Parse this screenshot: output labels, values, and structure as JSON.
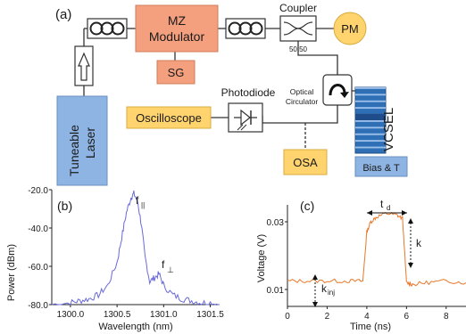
{
  "panel_a": {
    "label": "(a)",
    "laser_label_1": "Tuneable",
    "laser_label_2": "Laser",
    "mz_label_1": "MZ",
    "mz_label_2": "Modulator",
    "sg_label": "SG",
    "coupler_label": "Coupler",
    "coupler_ratio": "50:50",
    "pm_label": "PM",
    "photodiode_label": "Photodiode",
    "oscilloscope_label": "Oscilloscope",
    "circulator_label_1": "Optical",
    "circulator_label_2": "Circulator",
    "osa_label": "OSA",
    "vcsel_label": "VCSEL",
    "bias_label": "Bias & T",
    "colors": {
      "laser": "#8eb4e3",
      "modulator": "#f4a07f",
      "sg": "#f4a07f",
      "pm": "#ffd36e",
      "oscilloscope": "#ffd36e",
      "osa": "#ffd36e",
      "vcsel": "#2f6fb5",
      "bias": "#8eb4e3"
    }
  },
  "panel_b": {
    "label": "(b)",
    "ylabel": "Power (dBm)",
    "xlabel": "Wavelength (nm)",
    "yticks": [
      "-20.0",
      "-40.0",
      "-60.0",
      "-80.0"
    ],
    "xticks": [
      "1300.0",
      "1300.5",
      "1301.0",
      "1301.5"
    ],
    "peak_label_main": "f",
    "peak_label_main_sub": "||",
    "peak_label_side": "f",
    "peak_label_side_sub": "⊥"
  },
  "panel_c": {
    "label": "(c)",
    "ylabel": "Voltage (V)",
    "xlabel": "Time (ns)",
    "yticks": [
      "0.03",
      "0.01"
    ],
    "xticks": [
      "0",
      "2",
      "4",
      "6",
      "8"
    ],
    "td_label": "t",
    "td_sub": "d",
    "k_label": "k",
    "kinj_label": "k",
    "kinj_sub": "inj"
  },
  "chart_data": [
    {
      "type": "line",
      "xlabel": "Wavelength (nm)",
      "ylabel": "Power (dBm)",
      "xlim": [
        1299.8,
        1301.6
      ],
      "ylim": [
        -80,
        -20
      ],
      "color": "#6a6ad8",
      "x": [
        1299.8,
        1300.0,
        1300.1,
        1300.2,
        1300.3,
        1300.4,
        1300.5,
        1300.55,
        1300.6,
        1300.65,
        1300.68,
        1300.72,
        1300.76,
        1300.8,
        1300.85,
        1300.9,
        1300.95,
        1301.0,
        1301.1,
        1301.2,
        1301.3,
        1301.4,
        1301.5,
        1301.6
      ],
      "y": [
        -80,
        -79,
        -78,
        -77,
        -75,
        -70,
        -58,
        -45,
        -32,
        -24,
        -22,
        -26,
        -38,
        -55,
        -68,
        -66,
        -64,
        -70,
        -75,
        -77,
        -78,
        -79,
        -79,
        -80
      ]
    },
    {
      "type": "line",
      "xlabel": "Time (ns)",
      "ylabel": "Voltage (V)",
      "xlim": [
        0,
        9
      ],
      "ylim": [
        0.005,
        0.035
      ],
      "color": "#e8772a",
      "x": [
        0,
        1,
        2,
        3,
        3.8,
        4.0,
        4.2,
        4.5,
        5,
        5.5,
        5.8,
        6.0,
        6.3,
        7,
        8,
        9
      ],
      "y": [
        0.0125,
        0.0125,
        0.0125,
        0.0125,
        0.0125,
        0.027,
        0.03,
        0.0315,
        0.0325,
        0.032,
        0.031,
        0.012,
        0.0115,
        0.012,
        0.0125,
        0.012
      ]
    }
  ]
}
